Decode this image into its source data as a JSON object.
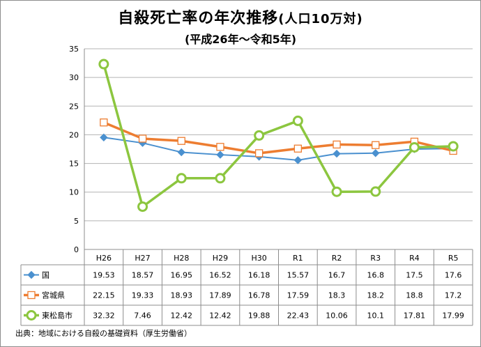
{
  "title": {
    "main": "自殺死亡率の年次推移",
    "paren": "(人口10万対)",
    "sub": "(平成26年～令和5年)"
  },
  "source": "出典：地域における自殺の基礎資料（厚生労働省）",
  "chart_data": {
    "type": "line",
    "categories": [
      "H26",
      "H27",
      "H28",
      "H29",
      "H30",
      "R1",
      "R2",
      "R3",
      "R4",
      "R5"
    ],
    "ylim": [
      0,
      35
    ],
    "yticks": [
      0,
      5,
      10,
      15,
      20,
      25,
      30,
      35
    ],
    "grid": "horizontal",
    "series": [
      {
        "name": "国",
        "values": [
          19.53,
          18.57,
          16.95,
          16.52,
          16.18,
          15.57,
          16.7,
          16.8,
          17.5,
          17.6
        ],
        "labels": [
          "19.53",
          "18.57",
          "16.95",
          "16.52",
          "16.18",
          "15.57",
          "16.7",
          "16.8",
          "17.5",
          "17.6"
        ],
        "color": "#4a90cf",
        "marker": "diamond"
      },
      {
        "name": "宮城県",
        "values": [
          22.15,
          19.33,
          18.93,
          17.89,
          16.78,
          17.59,
          18.3,
          18.2,
          18.8,
          17.2
        ],
        "labels": [
          "22.15",
          "19.33",
          "18.93",
          "17.89",
          "16.78",
          "17.59",
          "18.3",
          "18.2",
          "18.8",
          "17.2"
        ],
        "color": "#ed7d31",
        "marker": "square"
      },
      {
        "name": "東松島市",
        "values": [
          32.32,
          7.46,
          12.42,
          12.42,
          19.88,
          22.43,
          10.06,
          10.1,
          17.81,
          17.99
        ],
        "labels": [
          "32.32",
          "7.46",
          "12.42",
          "12.42",
          "19.88",
          "22.43",
          "10.06",
          "10.1",
          "17.81",
          "17.99"
        ],
        "color": "#8cc63f",
        "marker": "circle"
      }
    ]
  }
}
